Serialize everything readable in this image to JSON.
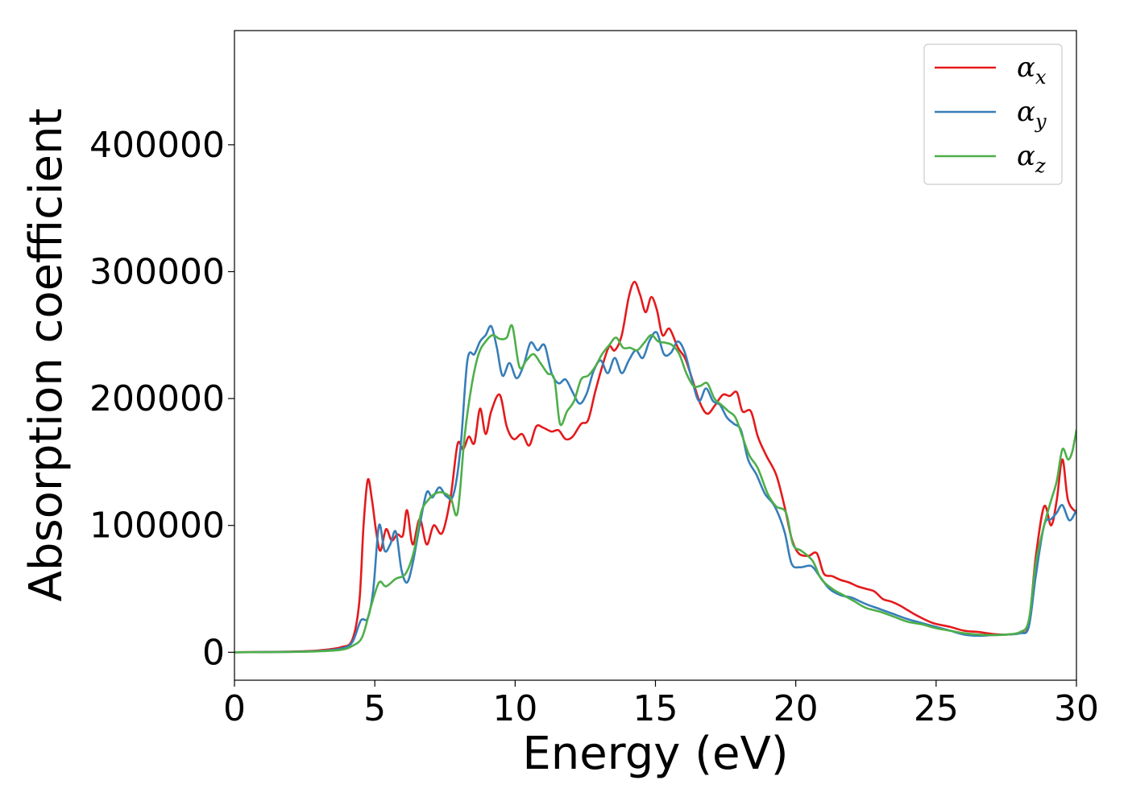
{
  "chart_data": {
    "type": "line",
    "title": "",
    "xlabel": "Energy (eV)",
    "ylabel": "Absorption coefficient",
    "xlim": [
      0,
      30
    ],
    "ylim": [
      -22000,
      490000
    ],
    "xticks": [
      0,
      5,
      10,
      15,
      20,
      25,
      30
    ],
    "yticks": [
      0,
      100000,
      200000,
      300000,
      400000
    ],
    "grid": false,
    "legend_position": "top-right",
    "series": [
      {
        "name": "α_x",
        "symbol": "α",
        "subscript": "x",
        "color": "#e41a1c",
        "points": [
          [
            0,
            0
          ],
          [
            2,
            500
          ],
          [
            3,
            1500
          ],
          [
            3.8,
            4000
          ],
          [
            4.2,
            10000
          ],
          [
            4.45,
            40000
          ],
          [
            4.6,
            100000
          ],
          [
            4.75,
            136000
          ],
          [
            4.9,
            120000
          ],
          [
            5.05,
            95000
          ],
          [
            5.2,
            80000
          ],
          [
            5.4,
            97000
          ],
          [
            5.6,
            88000
          ],
          [
            5.8,
            93000
          ],
          [
            6.0,
            92000
          ],
          [
            6.15,
            112000
          ],
          [
            6.35,
            85000
          ],
          [
            6.6,
            105000
          ],
          [
            6.85,
            85000
          ],
          [
            7.1,
            100000
          ],
          [
            7.4,
            94000
          ],
          [
            7.7,
            122000
          ],
          [
            7.95,
            164000
          ],
          [
            8.15,
            160000
          ],
          [
            8.35,
            170000
          ],
          [
            8.55,
            165000
          ],
          [
            8.75,
            192000
          ],
          [
            8.95,
            172000
          ],
          [
            9.15,
            190000
          ],
          [
            9.45,
            203000
          ],
          [
            9.7,
            178000
          ],
          [
            9.95,
            168000
          ],
          [
            10.25,
            172000
          ],
          [
            10.5,
            163000
          ],
          [
            10.75,
            178000
          ],
          [
            11.0,
            177000
          ],
          [
            11.3,
            174000
          ],
          [
            11.55,
            175000
          ],
          [
            11.8,
            168000
          ],
          [
            12.05,
            170000
          ],
          [
            12.35,
            180000
          ],
          [
            12.6,
            183000
          ],
          [
            12.85,
            205000
          ],
          [
            13.1,
            225000
          ],
          [
            13.35,
            241000
          ],
          [
            13.55,
            238000
          ],
          [
            13.8,
            250000
          ],
          [
            14.05,
            280000
          ],
          [
            14.25,
            292000
          ],
          [
            14.45,
            282000
          ],
          [
            14.65,
            268000
          ],
          [
            14.85,
            280000
          ],
          [
            15.05,
            270000
          ],
          [
            15.25,
            250000
          ],
          [
            15.5,
            255000
          ],
          [
            15.8,
            240000
          ],
          [
            16.05,
            232000
          ],
          [
            16.3,
            216000
          ],
          [
            16.6,
            196000
          ],
          [
            16.85,
            188000
          ],
          [
            17.1,
            194000
          ],
          [
            17.4,
            203000
          ],
          [
            17.65,
            202000
          ],
          [
            17.9,
            205000
          ],
          [
            18.1,
            190000
          ],
          [
            18.4,
            190000
          ],
          [
            18.65,
            170000
          ],
          [
            18.95,
            155000
          ],
          [
            19.3,
            140000
          ],
          [
            19.6,
            115000
          ],
          [
            19.85,
            90000
          ],
          [
            20.1,
            78000
          ],
          [
            20.45,
            76000
          ],
          [
            20.75,
            78000
          ],
          [
            21.0,
            62000
          ],
          [
            21.3,
            60000
          ],
          [
            21.6,
            57000
          ],
          [
            21.9,
            55000
          ],
          [
            22.2,
            52000
          ],
          [
            22.5,
            50000
          ],
          [
            22.8,
            48000
          ],
          [
            23.1,
            42000
          ],
          [
            23.4,
            40000
          ],
          [
            23.7,
            37000
          ],
          [
            24.0,
            33000
          ],
          [
            24.4,
            28000
          ],
          [
            24.9,
            23000
          ],
          [
            25.5,
            20000
          ],
          [
            26.0,
            17000
          ],
          [
            26.5,
            16000
          ],
          [
            27.0,
            14500
          ],
          [
            27.5,
            14000
          ],
          [
            28.0,
            15500
          ],
          [
            28.3,
            22000
          ],
          [
            28.55,
            75000
          ],
          [
            28.85,
            115000
          ],
          [
            29.1,
            100000
          ],
          [
            29.3,
            120000
          ],
          [
            29.5,
            152000
          ],
          [
            29.7,
            120000
          ],
          [
            30.0,
            110000
          ]
        ]
      },
      {
        "name": "α_y",
        "symbol": "α",
        "subscript": "y",
        "color": "#377eb8",
        "points": [
          [
            0,
            0
          ],
          [
            2,
            400
          ],
          [
            3,
            1000
          ],
          [
            3.8,
            3000
          ],
          [
            4.2,
            8000
          ],
          [
            4.5,
            25000
          ],
          [
            4.75,
            27000
          ],
          [
            4.95,
            50000
          ],
          [
            5.15,
            100000
          ],
          [
            5.35,
            80000
          ],
          [
            5.55,
            85000
          ],
          [
            5.75,
            95000
          ],
          [
            5.95,
            65000
          ],
          [
            6.15,
            55000
          ],
          [
            6.35,
            70000
          ],
          [
            6.6,
            100000
          ],
          [
            6.85,
            126000
          ],
          [
            7.05,
            122000
          ],
          [
            7.3,
            130000
          ],
          [
            7.55,
            123000
          ],
          [
            7.8,
            124000
          ],
          [
            8.05,
            160000
          ],
          [
            8.3,
            230000
          ],
          [
            8.55,
            235000
          ],
          [
            8.75,
            245000
          ],
          [
            8.95,
            250000
          ],
          [
            9.15,
            257000
          ],
          [
            9.35,
            240000
          ],
          [
            9.55,
            218000
          ],
          [
            9.8,
            228000
          ],
          [
            10.05,
            216000
          ],
          [
            10.3,
            226000
          ],
          [
            10.55,
            244000
          ],
          [
            10.8,
            238000
          ],
          [
            11.05,
            242000
          ],
          [
            11.3,
            220000
          ],
          [
            11.55,
            212000
          ],
          [
            11.8,
            215000
          ],
          [
            12.05,
            205000
          ],
          [
            12.3,
            196000
          ],
          [
            12.55,
            204000
          ],
          [
            12.8,
            222000
          ],
          [
            13.05,
            230000
          ],
          [
            13.3,
            220000
          ],
          [
            13.55,
            232000
          ],
          [
            13.8,
            220000
          ],
          [
            14.05,
            230000
          ],
          [
            14.3,
            238000
          ],
          [
            14.55,
            232000
          ],
          [
            14.8,
            246000
          ],
          [
            15.05,
            252000
          ],
          [
            15.3,
            235000
          ],
          [
            15.55,
            236000
          ],
          [
            15.8,
            245000
          ],
          [
            16.05,
            236000
          ],
          [
            16.3,
            215000
          ],
          [
            16.55,
            198000
          ],
          [
            16.8,
            208000
          ],
          [
            17.05,
            198000
          ],
          [
            17.3,
            195000
          ],
          [
            17.55,
            185000
          ],
          [
            17.8,
            180000
          ],
          [
            18.05,
            175000
          ],
          [
            18.3,
            152000
          ],
          [
            18.6,
            140000
          ],
          [
            18.9,
            125000
          ],
          [
            19.25,
            115000
          ],
          [
            19.6,
            95000
          ],
          [
            19.85,
            70000
          ],
          [
            20.15,
            67000
          ],
          [
            20.55,
            68000
          ],
          [
            20.85,
            60000
          ],
          [
            21.2,
            50000
          ],
          [
            21.6,
            45000
          ],
          [
            22.0,
            43000
          ],
          [
            22.5,
            38000
          ],
          [
            23.0,
            34000
          ],
          [
            23.5,
            30000
          ],
          [
            24.0,
            26000
          ],
          [
            24.5,
            23000
          ],
          [
            25.0,
            20000
          ],
          [
            25.5,
            17000
          ],
          [
            26.0,
            14000
          ],
          [
            26.5,
            13000
          ],
          [
            27.0,
            13500
          ],
          [
            27.5,
            14000
          ],
          [
            28.0,
            15000
          ],
          [
            28.3,
            20000
          ],
          [
            28.55,
            60000
          ],
          [
            28.85,
            100000
          ],
          [
            29.1,
            105000
          ],
          [
            29.3,
            110000
          ],
          [
            29.5,
            116000
          ],
          [
            29.75,
            104000
          ],
          [
            30.0,
            112000
          ]
        ]
      },
      {
        "name": "α_z",
        "symbol": "α",
        "subscript": "z",
        "color": "#4daf4a",
        "points": [
          [
            0,
            0
          ],
          [
            2,
            300
          ],
          [
            3,
            800
          ],
          [
            3.8,
            2000
          ],
          [
            4.2,
            5000
          ],
          [
            4.55,
            12000
          ],
          [
            4.85,
            35000
          ],
          [
            5.15,
            55000
          ],
          [
            5.4,
            52000
          ],
          [
            5.75,
            58000
          ],
          [
            6.1,
            62000
          ],
          [
            6.4,
            80000
          ],
          [
            6.65,
            110000
          ],
          [
            6.9,
            120000
          ],
          [
            7.15,
            125000
          ],
          [
            7.4,
            126000
          ],
          [
            7.7,
            122000
          ],
          [
            7.95,
            110000
          ],
          [
            8.2,
            170000
          ],
          [
            8.45,
            210000
          ],
          [
            8.7,
            235000
          ],
          [
            8.95,
            245000
          ],
          [
            9.2,
            250000
          ],
          [
            9.45,
            247000
          ],
          [
            9.7,
            248000
          ],
          [
            9.9,
            257000
          ],
          [
            10.15,
            225000
          ],
          [
            10.4,
            230000
          ],
          [
            10.65,
            235000
          ],
          [
            10.9,
            228000
          ],
          [
            11.15,
            220000
          ],
          [
            11.4,
            215000
          ],
          [
            11.6,
            180000
          ],
          [
            11.85,
            190000
          ],
          [
            12.1,
            198000
          ],
          [
            12.35,
            215000
          ],
          [
            12.6,
            218000
          ],
          [
            12.85,
            225000
          ],
          [
            13.1,
            235000
          ],
          [
            13.35,
            242000
          ],
          [
            13.6,
            248000
          ],
          [
            13.85,
            240000
          ],
          [
            14.1,
            240000
          ],
          [
            14.35,
            238000
          ],
          [
            14.6,
            244000
          ],
          [
            14.85,
            250000
          ],
          [
            15.1,
            245000
          ],
          [
            15.35,
            244000
          ],
          [
            15.6,
            242000
          ],
          [
            15.85,
            235000
          ],
          [
            16.1,
            220000
          ],
          [
            16.35,
            210000
          ],
          [
            16.6,
            210000
          ],
          [
            16.85,
            212000
          ],
          [
            17.1,
            200000
          ],
          [
            17.35,
            195000
          ],
          [
            17.6,
            190000
          ],
          [
            17.85,
            185000
          ],
          [
            18.1,
            170000
          ],
          [
            18.35,
            155000
          ],
          [
            18.65,
            145000
          ],
          [
            19.0,
            125000
          ],
          [
            19.3,
            115000
          ],
          [
            19.65,
            110000
          ],
          [
            19.9,
            85000
          ],
          [
            20.2,
            80000
          ],
          [
            20.6,
            72000
          ],
          [
            20.9,
            58000
          ],
          [
            21.3,
            50000
          ],
          [
            21.7,
            45000
          ],
          [
            22.1,
            40000
          ],
          [
            22.5,
            35000
          ],
          [
            23.0,
            32000
          ],
          [
            23.5,
            28000
          ],
          [
            24.0,
            24000
          ],
          [
            24.5,
            22000
          ],
          [
            25.0,
            19000
          ],
          [
            25.5,
            17000
          ],
          [
            26.0,
            15000
          ],
          [
            26.5,
            14000
          ],
          [
            27.0,
            13500
          ],
          [
            27.5,
            14000
          ],
          [
            28.0,
            16000
          ],
          [
            28.3,
            25000
          ],
          [
            28.55,
            70000
          ],
          [
            28.85,
            100000
          ],
          [
            29.1,
            120000
          ],
          [
            29.3,
            135000
          ],
          [
            29.5,
            160000
          ],
          [
            29.7,
            152000
          ],
          [
            29.85,
            158000
          ],
          [
            30.0,
            175000
          ]
        ]
      }
    ]
  }
}
